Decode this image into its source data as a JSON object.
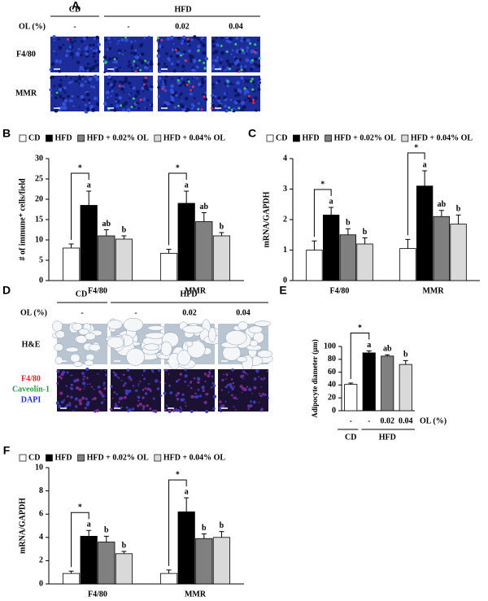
{
  "figure_a": {
    "panel": "A",
    "group_labels": [
      "CD",
      "HFD"
    ],
    "ol_label": "OL (%)",
    "ol_values": [
      "-",
      "-",
      "0.02",
      "0.04"
    ],
    "rows": [
      "F4/80",
      "MMR"
    ]
  },
  "figure_d": {
    "panel": "D",
    "group_labels": [
      "CD",
      "HFD"
    ],
    "ol_label": "OL (%)",
    "ol_values": [
      "-",
      "-",
      "0.02",
      "0.04"
    ],
    "rows": [
      "H&E"
    ],
    "stain_labels": [
      "F4/80",
      "Caveolin-1",
      "DAPI"
    ]
  },
  "chart_data": [
    {
      "type": "bar",
      "panel": "B",
      "ylabel": "# of immune⁺ cells/field",
      "categories": [
        "F4/80",
        "MMR"
      ],
      "ylim": [
        0,
        30
      ],
      "yticks": [
        0,
        5,
        10,
        15,
        20,
        25,
        30
      ],
      "significance": [
        "*",
        "*"
      ],
      "series": [
        {
          "name": "CD",
          "color": "#ffffff",
          "values": [
            8,
            6.7
          ],
          "errors": [
            1,
            1
          ],
          "letters": [
            null,
            null
          ]
        },
        {
          "name": "HFD",
          "color": "#000000",
          "values": [
            18.5,
            19
          ],
          "errors": [
            3.5,
            3
          ],
          "letters": [
            "a",
            "a"
          ]
        },
        {
          "name": "HFD + 0.02% OL",
          "color": "#808080",
          "values": [
            11,
            14.5
          ],
          "errors": [
            1.5,
            2.2
          ],
          "letters": [
            "ab",
            "ab"
          ]
        },
        {
          "name": "HFD + 0.04% OL",
          "color": "#d9d9d9",
          "values": [
            10.2,
            11
          ],
          "errors": [
            0.8,
            0.8
          ],
          "letters": [
            "b",
            "b"
          ]
        }
      ]
    },
    {
      "type": "bar",
      "panel": "C",
      "ylabel": "mRNA/GAPDH",
      "categories": [
        "F4/80",
        "MMR"
      ],
      "ylim": [
        0,
        4
      ],
      "yticks": [
        0,
        1,
        2,
        3,
        4
      ],
      "significance": [
        "*",
        "*"
      ],
      "series": [
        {
          "name": "CD",
          "color": "#ffffff",
          "values": [
            1.0,
            1.05
          ],
          "errors": [
            0.3,
            0.3
          ],
          "letters": [
            null,
            null
          ]
        },
        {
          "name": "HFD",
          "color": "#000000",
          "values": [
            2.15,
            3.1
          ],
          "errors": [
            0.25,
            0.5
          ],
          "letters": [
            "a",
            "a"
          ]
        },
        {
          "name": "HFD + 0.02% OL",
          "color": "#808080",
          "values": [
            1.5,
            2.1
          ],
          "errors": [
            0.2,
            0.2
          ],
          "letters": [
            "b",
            "ab"
          ]
        },
        {
          "name": "HFD + 0.04% OL",
          "color": "#d9d9d9",
          "values": [
            1.2,
            1.85
          ],
          "errors": [
            0.2,
            0.3
          ],
          "letters": [
            "b",
            "b"
          ]
        }
      ]
    },
    {
      "type": "bar",
      "panel": "E",
      "ylabel": "Adipocyte diameter (μm)",
      "categories": [
        "-",
        "-",
        "0.02",
        "0.04"
      ],
      "xlabel": "OL (%)",
      "groups": [
        "CD",
        "HFD"
      ],
      "ylim": [
        0,
        100
      ],
      "yticks": [
        0,
        20,
        40,
        60,
        80,
        100
      ],
      "significance": "*",
      "series": [
        {
          "colors": [
            "#ffffff",
            "#000000",
            "#808080",
            "#d9d9d9"
          ],
          "values": [
            41,
            90,
            85,
            72
          ],
          "errors": [
            2,
            3,
            2,
            6
          ],
          "letters": [
            null,
            "a",
            "ab",
            "b"
          ]
        }
      ]
    },
    {
      "type": "bar",
      "panel": "F",
      "ylabel": "mRNA/GAPDH",
      "categories": [
        "F4/80",
        "MMR"
      ],
      "ylim": [
        0,
        10
      ],
      "yticks": [
        0,
        2,
        4,
        6,
        8,
        10
      ],
      "significance": [
        "*",
        "*"
      ],
      "series": [
        {
          "name": "CD",
          "color": "#ffffff",
          "values": [
            0.9,
            0.9
          ],
          "errors": [
            0.2,
            0.3
          ],
          "letters": [
            null,
            null
          ]
        },
        {
          "name": "HFD",
          "color": "#000000",
          "values": [
            4.1,
            6.2
          ],
          "errors": [
            0.5,
            1.2
          ],
          "letters": [
            "a",
            "a"
          ]
        },
        {
          "name": "HFD + 0.02% OL",
          "color": "#808080",
          "values": [
            3.6,
            3.9
          ],
          "errors": [
            0.5,
            0.4
          ],
          "letters": [
            "b",
            "b"
          ]
        },
        {
          "name": "HFD + 0.04% OL",
          "color": "#d9d9d9",
          "values": [
            2.6,
            4.0
          ],
          "errors": [
            0.2,
            0.5
          ],
          "letters": [
            "b",
            "b"
          ]
        }
      ]
    }
  ]
}
